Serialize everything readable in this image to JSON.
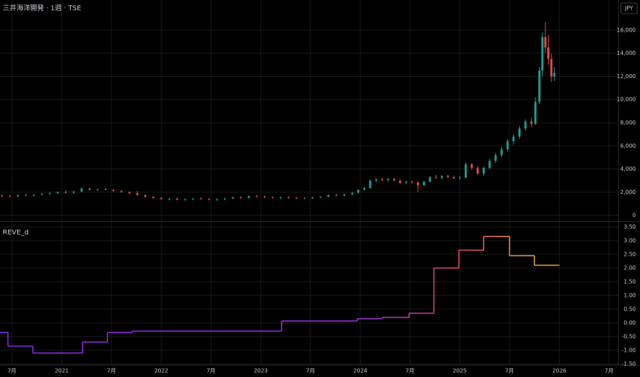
{
  "header": {
    "title": "三井海洋開発 · 1週 · TSE",
    "currency": "JPY"
  },
  "chart_data": [
    {
      "type": "candlestick",
      "up_color": "#26a69a",
      "down_color": "#ef5350",
      "xlim": [
        2020.38,
        2026.59
      ],
      "ylim": [
        -470,
        18600
      ],
      "yticks": [
        0,
        {
          "value": 2000,
          "label": "2,000"
        },
        {
          "value": 4000,
          "label": "4,000"
        },
        {
          "value": 6000,
          "label": "6,000"
        },
        {
          "value": 8000,
          "label": "8,000"
        },
        {
          "value": 10000,
          "label": "10,000"
        },
        {
          "value": 12000,
          "label": "12,000"
        },
        {
          "value": 14000,
          "label": "14,000"
        },
        {
          "value": 16000,
          "label": "16,000"
        }
      ],
      "x": [
        2020.4,
        2020.48,
        2020.56,
        2020.64,
        2020.72,
        2020.8,
        2020.88,
        2020.96,
        2021.04,
        2021.12,
        2021.2,
        2021.28,
        2021.36,
        2021.44,
        2021.52,
        2021.6,
        2021.68,
        2021.76,
        2021.84,
        2021.92,
        2022.0,
        2022.08,
        2022.16,
        2022.24,
        2022.32,
        2022.4,
        2022.48,
        2022.56,
        2022.64,
        2022.72,
        2022.8,
        2022.88,
        2022.96,
        2023.04,
        2023.12,
        2023.2,
        2023.28,
        2023.36,
        2023.44,
        2023.52,
        2023.6,
        2023.68,
        2023.76,
        2023.84,
        2023.92,
        2023.98,
        2024.04,
        2024.1,
        2024.16,
        2024.22,
        2024.28,
        2024.34,
        2024.4,
        2024.46,
        2024.52,
        2024.58,
        2024.64,
        2024.7,
        2024.76,
        2024.82,
        2024.88,
        2024.94,
        2025.0,
        2025.06,
        2025.12,
        2025.18,
        2025.24,
        2025.3,
        2025.36,
        2025.42,
        2025.48,
        2025.54,
        2025.6,
        2025.66,
        2025.72,
        2025.76,
        2025.8,
        2025.83,
        2025.86,
        2025.89,
        2025.92,
        2025.95
      ],
      "open": [
        1700,
        1650,
        1620,
        1750,
        1700,
        1780,
        1850,
        1900,
        2000,
        1950,
        2050,
        2300,
        2200,
        2250,
        2200,
        2100,
        2000,
        1900,
        1750,
        1600,
        1500,
        1400,
        1450,
        1350,
        1400,
        1450,
        1400,
        1350,
        1400,
        1450,
        1550,
        1500,
        1650,
        1600,
        1550,
        1500,
        1550,
        1500,
        1450,
        1500,
        1550,
        1600,
        1750,
        1700,
        1800,
        1950,
        2200,
        2350,
        3000,
        3100,
        3050,
        3150,
        3000,
        2800,
        2900,
        2850,
        2600,
        2900,
        3300,
        3250,
        3400,
        3300,
        3200,
        3250,
        4400,
        4100,
        3600,
        4100,
        4700,
        5200,
        5700,
        6400,
        6800,
        7500,
        8100,
        7900,
        9800,
        12500,
        15400,
        14500,
        13500,
        12000
      ],
      "high": [
        1800,
        1750,
        1780,
        1850,
        1800,
        1900,
        1980,
        2050,
        2150,
        2100,
        2400,
        2350,
        2300,
        2350,
        2250,
        2150,
        2050,
        2100,
        1800,
        1650,
        1550,
        1500,
        1500,
        1450,
        1500,
        1550,
        1500,
        1450,
        1500,
        1600,
        1650,
        1700,
        1750,
        1700,
        1650,
        1600,
        1650,
        1600,
        1550,
        1600,
        1650,
        1800,
        1850,
        1850,
        2000,
        2250,
        2450,
        3100,
        3200,
        3250,
        3200,
        3250,
        3100,
        2950,
        3000,
        2950,
        3000,
        3400,
        3500,
        3450,
        3500,
        3400,
        3400,
        4600,
        4500,
        4300,
        4200,
        4900,
        5400,
        5900,
        6600,
        7000,
        7700,
        8300,
        8400,
        10200,
        12800,
        15800,
        16700,
        15600,
        14000,
        12800
      ],
      "low": [
        1600,
        1580,
        1600,
        1680,
        1640,
        1720,
        1800,
        1850,
        1900,
        1850,
        2000,
        2150,
        2100,
        2150,
        2050,
        1950,
        1850,
        1700,
        1550,
        1450,
        1350,
        1300,
        1300,
        1250,
        1300,
        1350,
        1300,
        1250,
        1300,
        1400,
        1450,
        1450,
        1550,
        1500,
        1450,
        1400,
        1450,
        1400,
        1400,
        1420,
        1480,
        1550,
        1650,
        1650,
        1750,
        1900,
        2150,
        2300,
        2850,
        2950,
        2900,
        2950,
        2700,
        2700,
        2750,
        2000,
        2550,
        2850,
        3150,
        3100,
        3200,
        3150,
        3100,
        3200,
        3900,
        3500,
        3400,
        4000,
        4500,
        5000,
        5500,
        6100,
        6600,
        7300,
        7600,
        7800,
        9600,
        12000,
        14000,
        13000,
        11500,
        11600
      ],
      "close": [
        1650,
        1620,
        1750,
        1700,
        1780,
        1850,
        1900,
        2000,
        1950,
        2050,
        2300,
        2200,
        2250,
        2200,
        2100,
        2000,
        1900,
        1750,
        1600,
        1500,
        1400,
        1450,
        1350,
        1400,
        1450,
        1400,
        1350,
        1400,
        1450,
        1550,
        1500,
        1650,
        1600,
        1550,
        1500,
        1550,
        1500,
        1450,
        1500,
        1550,
        1600,
        1750,
        1700,
        1800,
        1950,
        2200,
        2350,
        3000,
        3100,
        3050,
        3150,
        3000,
        2800,
        2900,
        2850,
        2600,
        2900,
        3300,
        3250,
        3400,
        3300,
        3200,
        3250,
        4400,
        4100,
        3600,
        4100,
        4700,
        5200,
        5700,
        6400,
        6800,
        7500,
        8100,
        7900,
        9800,
        12500,
        15400,
        14500,
        13500,
        12000,
        12300
      ]
    },
    {
      "type": "step",
      "title": "REVE_d",
      "colors": [
        "#9b30ff",
        "#b03cf0",
        "#ff4f7b",
        "#ffb74d"
      ],
      "xlim": [
        2020.38,
        2026.59
      ],
      "ylim": [
        -1.6,
        3.65
      ],
      "xticks": [
        {
          "value": 2020.5,
          "label": "7月"
        },
        2021,
        {
          "value": 2021.5,
          "label": "7月"
        },
        2022,
        {
          "value": 2022.5,
          "label": "7月"
        },
        2023,
        {
          "value": 2023.5,
          "label": "7月"
        },
        2024,
        {
          "value": 2024.5,
          "label": "7月"
        },
        2025,
        {
          "value": 2025.5,
          "label": "7月"
        },
        2026,
        {
          "value": 2026.5,
          "label": "7月"
        }
      ],
      "yticks": [
        {
          "value": 3.5,
          "label": "3.50"
        },
        {
          "value": 3,
          "label": "3.00"
        },
        {
          "value": 2.5,
          "label": "2.50"
        },
        {
          "value": 2,
          "label": "2.00"
        },
        {
          "value": 1.5,
          "label": "1.50"
        },
        {
          "value": 1,
          "label": "1.00"
        },
        {
          "value": 0.5,
          "label": "0.50"
        },
        {
          "value": 0,
          "label": "0.00"
        },
        {
          "value": -0.5,
          "label": "-0.50"
        },
        {
          "value": -1,
          "label": "-1.00"
        },
        {
          "value": -1.5,
          "label": "-1.50"
        }
      ],
      "x": [
        2020.38,
        2020.46,
        2020.71,
        2021.21,
        2021.46,
        2021.71,
        2023.21,
        2023.97,
        2024.22,
        2024.49,
        2024.74,
        2024.99,
        2025.24,
        2025.5,
        2025.75,
        2026.0
      ],
      "values": [
        -0.35,
        -0.85,
        -1.1,
        -0.7,
        -0.35,
        -0.3,
        0.07,
        0.15,
        0.2,
        0.35,
        2.0,
        2.65,
        3.15,
        2.45,
        2.1,
        2.1
      ]
    }
  ]
}
